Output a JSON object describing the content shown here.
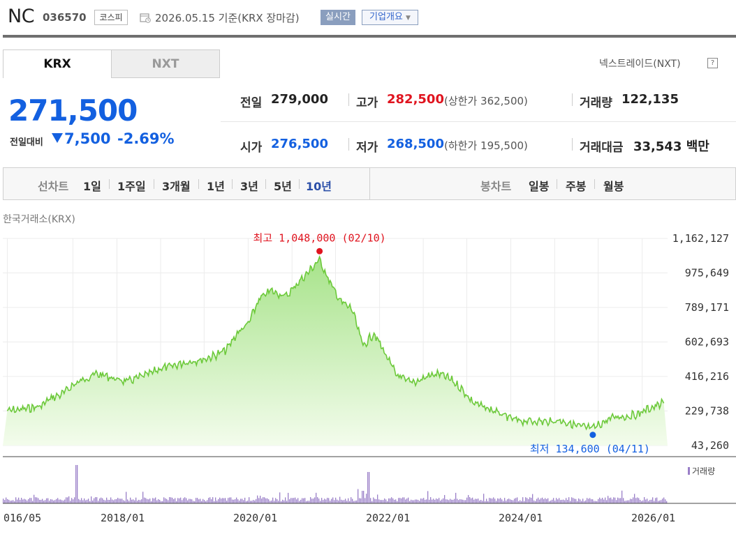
{
  "header": {
    "name": "NC",
    "code": "036570",
    "market": "코스피",
    "date": "2026.05.15 기준(KRX 장마감)",
    "realtime": "실시간",
    "company": "기업개요"
  },
  "tabs": [
    "KRX",
    "NXT"
  ],
  "nxt_link": "넥스트레이드(NXT)",
  "help_icon": "?",
  "price": {
    "current": "271,500",
    "change_label": "전일대비",
    "change": "7,500",
    "change_pct": "-2.69%"
  },
  "stats": {
    "prev_label": "전일",
    "prev": "279,000",
    "high_label": "고가",
    "high": "282,500",
    "upper_limit": "(상한가 362,500)",
    "volume_label": "거래량",
    "volume": "122,135",
    "open_label": "시가",
    "open": "276,500",
    "low_label": "저가",
    "low": "268,500",
    "lower_limit": "(하한가 195,500)",
    "amount_label": "거래대금",
    "amount": "33,543 백만"
  },
  "periods": {
    "line_label": "선차트",
    "line_items": [
      "1일",
      "1주일",
      "3개월",
      "1년",
      "3년",
      "5년",
      "10년"
    ],
    "selected": "10년",
    "candle_label": "봉차트",
    "candle_items": [
      "일봉",
      "주봉",
      "월봉"
    ]
  },
  "source": "한국거래소(KRX)",
  "volume_legend": "거래량",
  "colors": {
    "price_blue": "#1360e0",
    "price_red": "#e0141f",
    "line_green": "#6cc93a",
    "volume_purple": "#9a7fc8"
  },
  "chart_data": {
    "type": "area",
    "yticks": [
      "1,162,127",
      "975,649",
      "789,171",
      "602,693",
      "416,216",
      "229,738",
      "43,260"
    ],
    "ylim": [
      43260,
      1162127
    ],
    "xticks": [
      "016/05",
      "2018/01",
      "2020/01",
      "2022/01",
      "2024/01",
      "2026/01"
    ],
    "annotations": {
      "max": "최고 1,048,000 (02/10)",
      "min": "최저 134,600 (04/11)"
    },
    "series": [
      {
        "x": [
          "2016-05",
          "2016-08",
          "2016-11",
          "2017-01",
          "2017-03",
          "2017-05",
          "2017-07",
          "2017-09",
          "2017-11",
          "2018-01",
          "2018-03",
          "2018-05",
          "2018-07",
          "2018-09",
          "2018-11",
          "2019-01",
          "2019-03",
          "2019-05",
          "2019-07",
          "2019-09",
          "2019-11",
          "2020-01",
          "2020-03",
          "2020-05",
          "2020-06",
          "2020-08",
          "2020-10",
          "2020-12",
          "2021-02",
          "2021-04",
          "2021-06",
          "2021-08",
          "2021-10",
          "2021-12",
          "2022-02",
          "2022-04",
          "2022-06",
          "2022-08",
          "2022-10",
          "2022-12",
          "2023-02",
          "2023-04",
          "2023-06",
          "2023-08",
          "2023-10",
          "2023-12",
          "2024-02",
          "2024-04",
          "2024-06",
          "2024-08",
          "2024-10",
          "2025-01",
          "2025-04",
          "2025-06",
          "2025-08",
          "2025-10",
          "2025-12",
          "2026-02",
          "2026-05"
        ],
        "values": [
          230000,
          240000,
          255000,
          300000,
          320000,
          370000,
          400000,
          430000,
          420000,
          400000,
          390000,
          410000,
          430000,
          460000,
          470000,
          490000,
          500000,
          510000,
          530000,
          560000,
          650000,
          700000,
          830000,
          880000,
          870000,
          850000,
          920000,
          980000,
          1048000,
          920000,
          820000,
          780000,
          580000,
          650000,
          540000,
          430000,
          390000,
          390000,
          420000,
          430000,
          400000,
          350000,
          280000,
          250000,
          230000,
          200000,
          180000,
          175000,
          175000,
          170000,
          180000,
          150000,
          134600,
          170000,
          200000,
          200000,
          210000,
          240000,
          271500
        ]
      }
    ]
  }
}
